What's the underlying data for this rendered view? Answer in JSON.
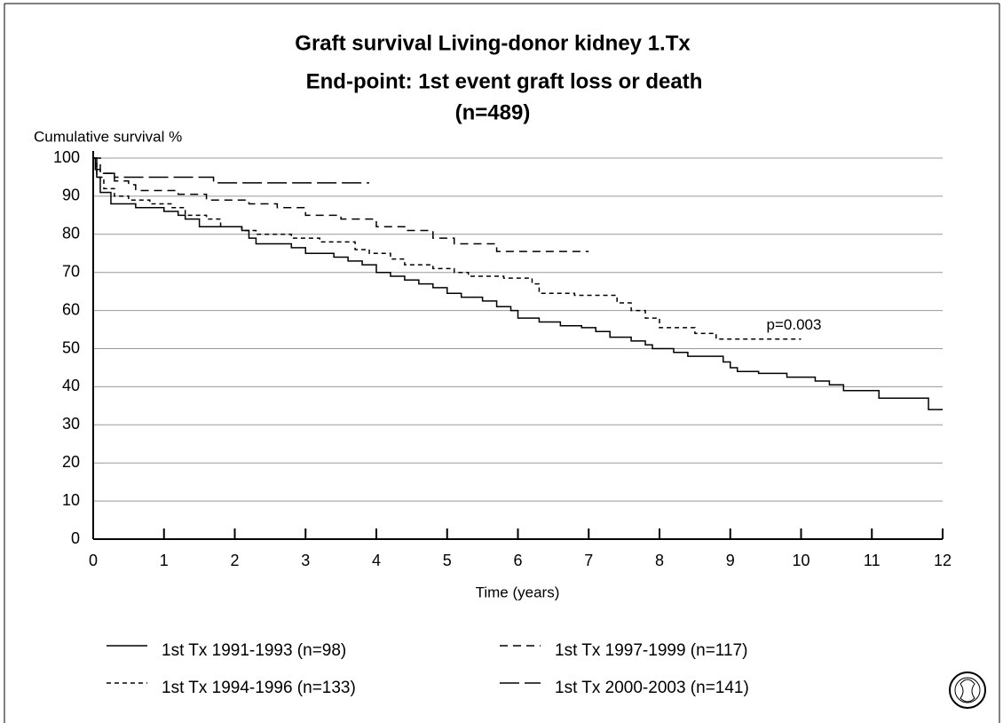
{
  "chart_data": {
    "type": "line",
    "step": true,
    "title": [
      "Graft survival  Living-donor kidney 1.Tx",
      "End-point: 1st event graft loss or death",
      "(n=489)"
    ],
    "y_label": "Cumulative survival %",
    "x_label": "Time (years)",
    "annotation": {
      "text": "p=0.003",
      "x": 9.9,
      "y": 56
    },
    "xlim": [
      0,
      12
    ],
    "xticks": [
      0,
      1,
      2,
      3,
      4,
      5,
      6,
      7,
      8,
      9,
      10,
      11,
      12
    ],
    "ylim": [
      0,
      100
    ],
    "yticks": [
      0,
      10,
      20,
      30,
      40,
      50,
      60,
      70,
      80,
      90,
      100
    ],
    "grid": true,
    "series": [
      {
        "name": "1st Tx 1991-1993 (n=98)",
        "color": "#000000",
        "dash": "none",
        "x": [
          0,
          0.05,
          0.1,
          0.25,
          0.6,
          1.0,
          1.2,
          1.3,
          1.5,
          2.1,
          2.2,
          2.3,
          2.8,
          3.0,
          3.4,
          3.6,
          3.8,
          4.0,
          4.2,
          4.4,
          4.6,
          4.8,
          5.0,
          5.2,
          5.5,
          5.7,
          5.9,
          6.0,
          6.3,
          6.6,
          6.9,
          7.1,
          7.3,
          7.6,
          7.8,
          7.9,
          8.2,
          8.4,
          8.9,
          9.0,
          9.1,
          9.4,
          9.8,
          10.2,
          10.4,
          10.6,
          11.1,
          11.8,
          12.0
        ],
        "values": [
          100,
          95,
          91,
          88,
          87,
          86,
          85,
          84,
          82,
          81,
          79,
          77.5,
          76.5,
          75,
          74,
          73,
          72,
          70,
          69,
          68,
          67,
          66,
          64.5,
          63.5,
          62.5,
          61,
          60,
          58,
          57,
          56,
          55.5,
          54.5,
          53,
          52,
          51,
          50,
          49,
          48,
          46.5,
          45,
          44,
          43.5,
          42.5,
          41.5,
          40.5,
          39,
          37,
          34,
          34
        ]
      },
      {
        "name": "1st Tx 1994-1996 (n=133)",
        "color": "#000000",
        "dash": "5,4",
        "x": [
          0,
          0.05,
          0.15,
          0.3,
          0.5,
          0.8,
          1.1,
          1.3,
          1.6,
          1.8,
          2.1,
          2.3,
          2.8,
          3.2,
          3.7,
          3.9,
          4.2,
          4.4,
          4.8,
          5.1,
          5.3,
          5.8,
          6.2,
          6.3,
          6.8,
          7.4,
          7.6,
          7.8,
          8.0,
          8.5,
          8.8,
          10.0
        ],
        "values": [
          100,
          95,
          92,
          90,
          89,
          88,
          87,
          85,
          84,
          82,
          81,
          80,
          79,
          78,
          76,
          75,
          73.5,
          72,
          71,
          70,
          69,
          68.5,
          67,
          64.5,
          64,
          62,
          60,
          58,
          55.5,
          54,
          52.5,
          52.5
        ]
      },
      {
        "name": "1st Tx 1997-1999 (n=117)",
        "color": "#000000",
        "dash": "9,6",
        "x": [
          0,
          0.1,
          0.3,
          0.5,
          0.6,
          1.2,
          1.6,
          2.2,
          2.6,
          3.0,
          3.5,
          4.0,
          4.4,
          4.8,
          5.1,
          5.7,
          7.0
        ],
        "values": [
          100,
          96,
          94,
          93,
          91.5,
          90.5,
          89,
          88,
          87,
          85,
          84,
          82,
          81,
          79,
          77.5,
          75.5,
          75.5
        ]
      },
      {
        "name": "1st Tx 2000-2003 (n=141)",
        "color": "#000000",
        "dash": "22,6",
        "x": [
          0,
          0.03,
          0.1,
          0.3,
          1.7,
          3.9
        ],
        "values": [
          100,
          97,
          96,
          95,
          93.5,
          93.5
        ]
      }
    ]
  }
}
